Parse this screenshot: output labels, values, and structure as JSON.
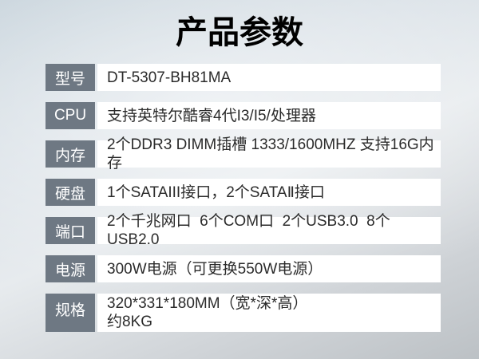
{
  "title": "产品参数",
  "specs": [
    {
      "label": "型号",
      "value": "DT-5307-BH81MA"
    },
    {
      "label": "CPU",
      "value": "支持英特尔酷睿4代I3/I5/处理器"
    },
    {
      "label": "内存",
      "value": "2个DDR3 DIMM插槽 1333/1600MHZ 支持16G内存"
    },
    {
      "label": "硬盘",
      "value": "1个SATAIII接口，2个SATAⅡ接口"
    },
    {
      "label": "端口",
      "value": "2个千兆网口  6个COM口  2个USB3.0  8个USB2.0"
    },
    {
      "label": "电源",
      "value": "300W电源（可更换550W电源）"
    },
    {
      "label": "规格",
      "value": "320*331*180MM（宽*深*高）\n约8KG"
    }
  ],
  "colors": {
    "label_background": "#6E7883",
    "label_text": "#FFFFFF",
    "value_background": "#FFFFFF",
    "value_text": "#2B2B2B",
    "title_text": "#000000",
    "page_gradient_top": "#CBD5DD",
    "page_gradient_middle": "#E8ECEF",
    "page_gradient_bottom": "#BEC3C7"
  }
}
